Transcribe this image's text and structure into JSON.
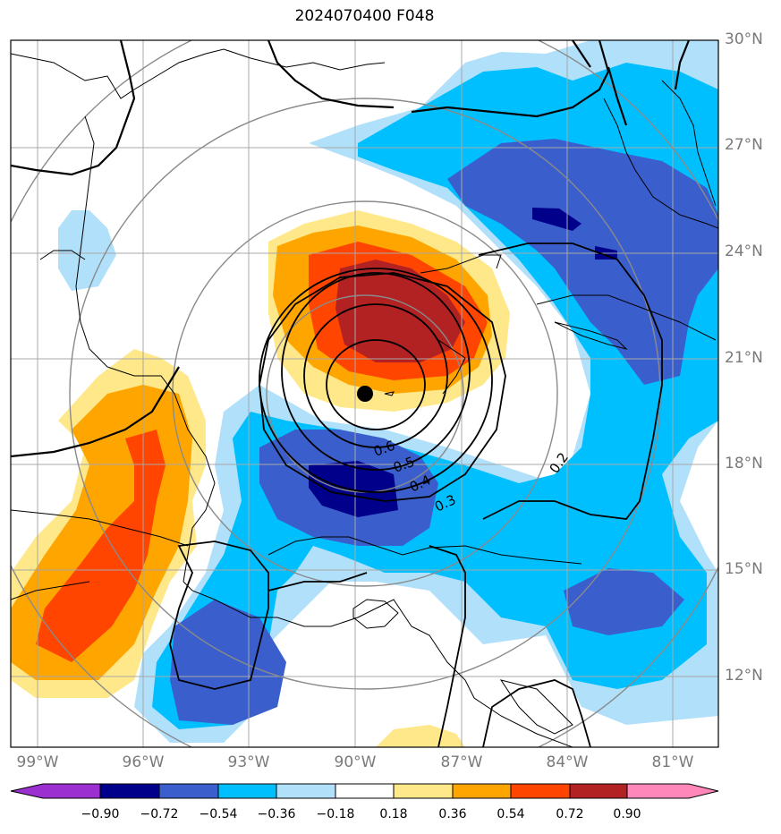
{
  "title": "2024070400 F048",
  "lat_labels": [
    "30°N",
    "27°N",
    "24°N",
    "21°N",
    "18°N",
    "15°N",
    "12°N"
  ],
  "lon_labels": [
    "99°W",
    "96°W",
    "93°W",
    "90°W",
    "87°W",
    "84°W",
    "81°W"
  ],
  "colorbar": {
    "ticks": [
      "−0.90",
      "−0.72",
      "−0.54",
      "−0.36",
      "−0.18",
      "0.18",
      "0.36",
      "0.54",
      "0.72",
      "0.90"
    ],
    "colors": [
      "#9b30d0",
      "#00008b",
      "#3a5fcd",
      "#00bfff",
      "#b0e0fa",
      "#ffffff",
      "#ffe88a",
      "#ffa500",
      "#ff4500",
      "#b22222",
      "#ff88b8"
    ]
  },
  "contour_labels": [
    "0.6",
    "0.5",
    "0.4",
    "0.3",
    "0.2"
  ],
  "center_marker": "storm-center-dot"
}
